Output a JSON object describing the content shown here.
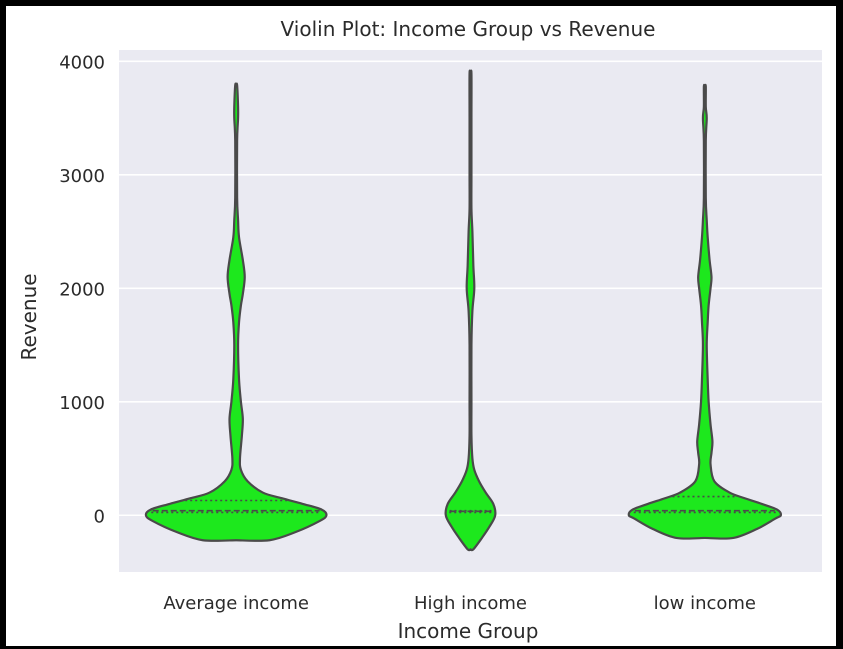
{
  "chart_data": {
    "type": "violin",
    "title": "Violin Plot: Income Group vs Revenue",
    "xlabel": "Income Group",
    "ylabel": "Revenue",
    "ylim": [
      -500,
      4100
    ],
    "yticks": [
      0,
      1000,
      2000,
      3000,
      4000
    ],
    "categories": [
      "Average income",
      "High income",
      "low income"
    ],
    "grid": true,
    "colors": {
      "violin_fill": "#1de81d",
      "violin_edge": "#4a4a4a",
      "plot_bg": "#eaeaf2",
      "grid": "#ffffff"
    },
    "violins": [
      {
        "category": "Average income",
        "min": -220,
        "max": 3790,
        "quartiles": [
          25,
          40,
          130
        ],
        "density_profile": [
          [
            -220,
            35
          ],
          [
            -150,
            62
          ],
          [
            -50,
            88
          ],
          [
            0,
            95
          ],
          [
            50,
            90
          ],
          [
            100,
            70
          ],
          [
            150,
            48
          ],
          [
            200,
            28
          ],
          [
            300,
            12
          ],
          [
            400,
            5
          ],
          [
            500,
            4
          ],
          [
            700,
            6
          ],
          [
            850,
            7
          ],
          [
            1000,
            5
          ],
          [
            1200,
            3
          ],
          [
            1500,
            2
          ],
          [
            1700,
            3
          ],
          [
            1850,
            5
          ],
          [
            1950,
            7
          ],
          [
            2100,
            9
          ],
          [
            2250,
            7
          ],
          [
            2450,
            3
          ],
          [
            2600,
            2
          ],
          [
            2800,
            1
          ],
          [
            3300,
            1
          ],
          [
            3500,
            2
          ],
          [
            3600,
            2
          ],
          [
            3790,
            1
          ]
        ]
      },
      {
        "category": "High income",
        "min": -300,
        "max": 3890,
        "quartiles": [
          25,
          35,
          40
        ],
        "density_profile": [
          [
            -300,
            3
          ],
          [
            -200,
            12
          ],
          [
            -100,
            20
          ],
          [
            0,
            26
          ],
          [
            100,
            24
          ],
          [
            200,
            16
          ],
          [
            300,
            9
          ],
          [
            400,
            4
          ],
          [
            500,
            2
          ],
          [
            700,
            1
          ],
          [
            1000,
            1
          ],
          [
            1500,
            1
          ],
          [
            1800,
            2
          ],
          [
            2000,
            4
          ],
          [
            2200,
            3
          ],
          [
            2500,
            2
          ],
          [
            2700,
            1
          ],
          [
            3000,
            1
          ],
          [
            3500,
            1
          ],
          [
            3890,
            1
          ]
        ]
      },
      {
        "category": "low income",
        "min": -200,
        "max": 3780,
        "quartiles": [
          25,
          40,
          165
        ],
        "density_profile": [
          [
            -200,
            30
          ],
          [
            -120,
            55
          ],
          [
            -30,
            74
          ],
          [
            0,
            80
          ],
          [
            50,
            76
          ],
          [
            100,
            60
          ],
          [
            150,
            42
          ],
          [
            200,
            26
          ],
          [
            300,
            10
          ],
          [
            450,
            6
          ],
          [
            550,
            7
          ],
          [
            650,
            8
          ],
          [
            800,
            6
          ],
          [
            1000,
            4
          ],
          [
            1200,
            3
          ],
          [
            1500,
            2
          ],
          [
            1700,
            3
          ],
          [
            1850,
            4
          ],
          [
            2000,
            6
          ],
          [
            2100,
            7
          ],
          [
            2250,
            5
          ],
          [
            2450,
            3
          ],
          [
            2600,
            2
          ],
          [
            2800,
            1
          ],
          [
            3300,
            1
          ],
          [
            3500,
            2
          ],
          [
            3600,
            1
          ],
          [
            3780,
            1
          ]
        ]
      }
    ]
  }
}
